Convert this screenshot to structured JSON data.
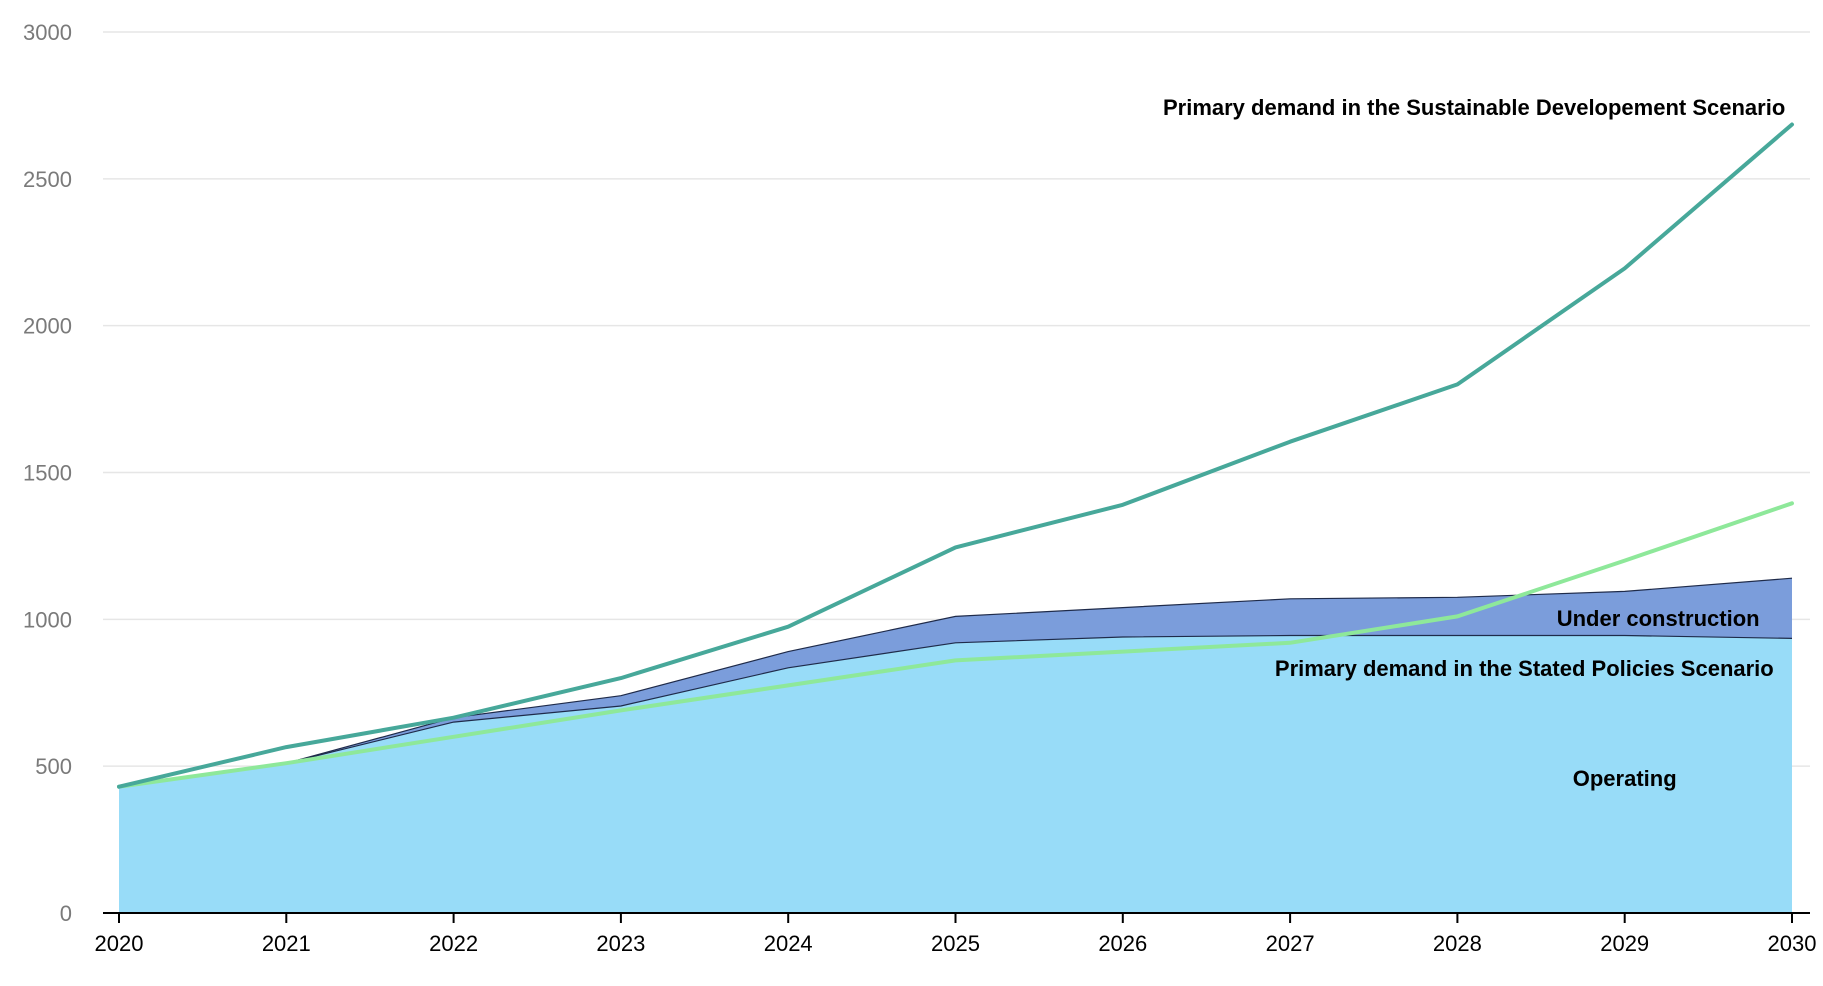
{
  "chart_data": {
    "type": "area",
    "title": "",
    "xlabel": "",
    "ylabel": "",
    "x": [
      2020,
      2021,
      2022,
      2023,
      2024,
      2025,
      2026,
      2027,
      2028,
      2029,
      2030
    ],
    "x_tick_labels": [
      "2020",
      "2021",
      "2022",
      "2023",
      "2024",
      "2025",
      "2026",
      "2027",
      "2028",
      "2029",
      "2030"
    ],
    "ylim": [
      0,
      3000
    ],
    "y_ticks": [
      0,
      500,
      1000,
      1500,
      2000,
      2500,
      3000
    ],
    "y_tick_labels": [
      "0",
      "500",
      "1000",
      "1500",
      "2000",
      "2500",
      "3000"
    ],
    "grid": true,
    "legend": "none",
    "series": [
      {
        "name": "Operating",
        "kind": "stacked-area",
        "color": "#98dcf8",
        "values": [
          430,
          510,
          650,
          705,
          835,
          920,
          940,
          945,
          945,
          945,
          935
        ]
      },
      {
        "name": "Under construction",
        "kind": "stacked-area",
        "color": "#7b9ddb",
        "values": [
          0,
          0,
          15,
          35,
          55,
          90,
          100,
          125,
          130,
          150,
          205
        ]
      },
      {
        "name": "Primary demand in the Stated Policies Scenario",
        "kind": "line",
        "color": "#8ee89a",
        "values": [
          430,
          510,
          600,
          690,
          775,
          860,
          890,
          920,
          1010,
          1200,
          1395
        ]
      },
      {
        "name": "Primary demand in the Sustainable Developement Scenario",
        "kind": "line",
        "color": "#47a89a",
        "values": [
          430,
          565,
          665,
          800,
          975,
          1245,
          1390,
          1605,
          1800,
          2195,
          2685
        ]
      }
    ],
    "annotations": [
      {
        "text": "Primary demand in the Sustainable Developement Scenario",
        "x": 2028.1,
        "y": 2745,
        "anchor": "middle"
      },
      {
        "text": "Under construction",
        "x": 2029.2,
        "y": 1005,
        "anchor": "middle"
      },
      {
        "text": "Primary demand in the Stated Policies Scenario",
        "x": 2028.4,
        "y": 835,
        "anchor": "middle"
      },
      {
        "text": "Operating",
        "x": 2029.0,
        "y": 460,
        "anchor": "middle"
      }
    ],
    "colors": {
      "grid": "#e6e6e6",
      "axis": "#000000",
      "operating_outline": "#1f2b4a",
      "construction_outline": "#1f2b4a"
    }
  }
}
